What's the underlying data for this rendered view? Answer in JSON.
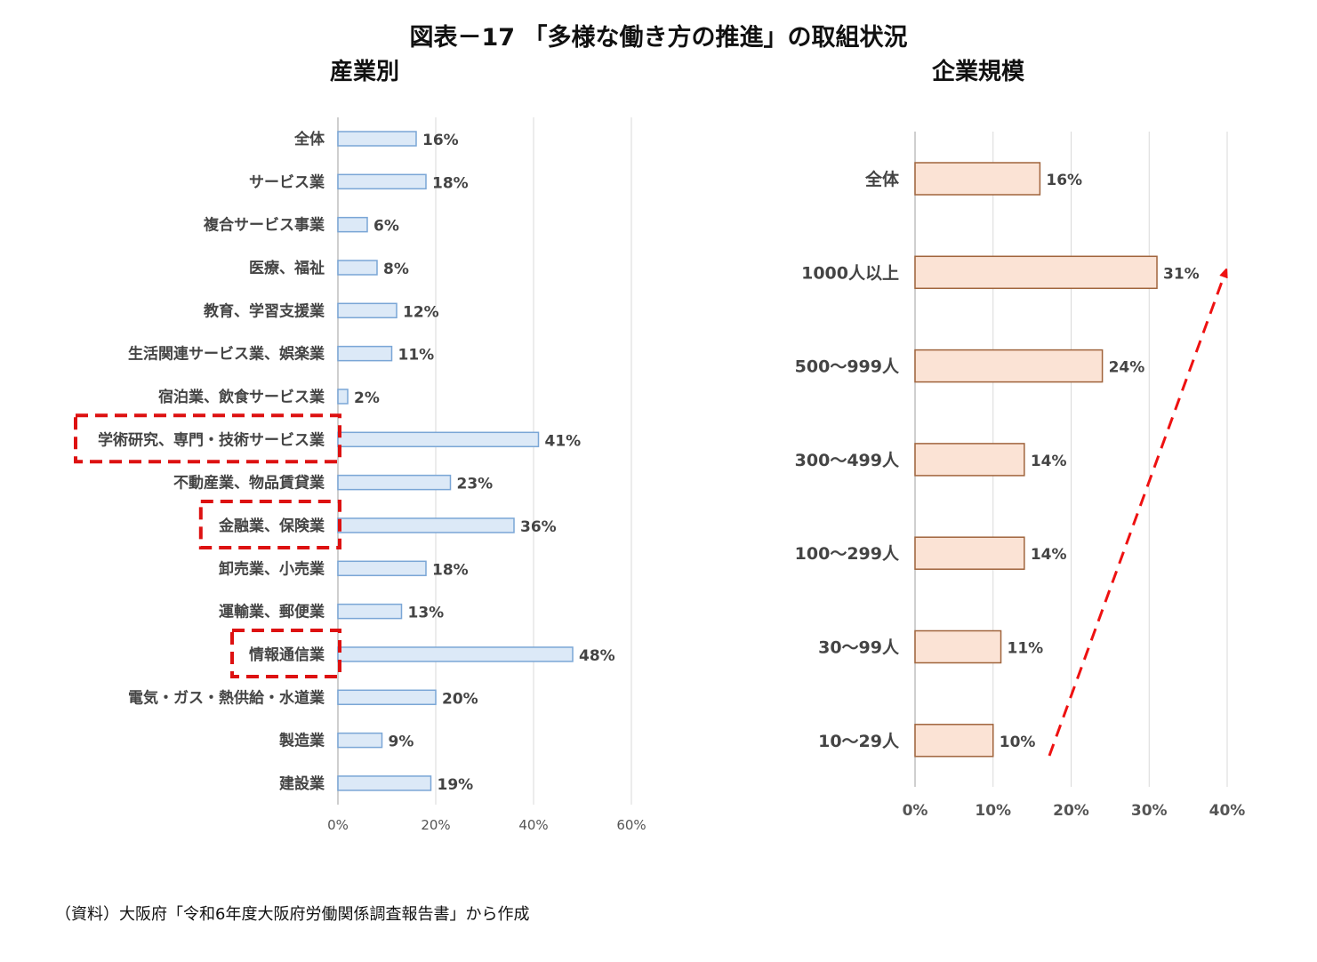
{
  "figure_title": "図表－17 「多様な働き方の推進」の取組状況",
  "source_note": "（資料）大阪府「令和6年度大阪府労働関係調査報告書」から作成",
  "colors": {
    "left_bar_fill": "#dce9f7",
    "left_bar_stroke": "#7aa6d6",
    "right_bar_fill": "#fbe3d5",
    "right_bar_stroke": "#a0643c",
    "highlight_box": "#dd1111",
    "arrow": "#ee1111",
    "gridline": "#d9d9d9"
  },
  "chart_data": [
    {
      "type": "bar",
      "orientation": "horizontal",
      "title": "産業別",
      "categories": [
        "全体",
        "サービス業",
        "複合サービス事業",
        "医療、福祉",
        "教育、学習支援業",
        "生活関連サービス業、娯楽業",
        "宿泊業、飲食サービス業",
        "学術研究、専門・技術サービス業",
        "不動産業、物品賃貸業",
        "金融業、保険業",
        "卸売業、小売業",
        "運輸業、郵便業",
        "情報通信業",
        "電気・ガス・熱供給・水道業",
        "製造業",
        "建設業"
      ],
      "values": [
        16,
        18,
        6,
        8,
        12,
        11,
        2,
        41,
        23,
        36,
        18,
        13,
        48,
        20,
        9,
        19
      ],
      "data_labels": [
        "16%",
        "18%",
        "6%",
        "8%",
        "12%",
        "11%",
        "2%",
        "41%",
        "23%",
        "36%",
        "18%",
        "13%",
        "48%",
        "20%",
        "9%",
        "19%"
      ],
      "xlim": [
        0,
        60
      ],
      "xticks": [
        "0%",
        "20%",
        "40%",
        "60%"
      ],
      "grid": true,
      "highlighted_categories": [
        "学術研究、専門・技術サービス業",
        "金融業、保険業",
        "情報通信業"
      ]
    },
    {
      "type": "bar",
      "orientation": "horizontal",
      "title": "企業規模",
      "categories": [
        "全体",
        "1000人以上",
        "500～999人",
        "300～499人",
        "100～299人",
        "30～99人",
        "10～29人"
      ],
      "values": [
        16,
        31,
        24,
        14,
        14,
        11,
        10
      ],
      "data_labels": [
        "16%",
        "31%",
        "24%",
        "14%",
        "14%",
        "11%",
        "10%"
      ],
      "xlim": [
        0,
        40
      ],
      "xticks": [
        "0%",
        "10%",
        "20%",
        "30%",
        "40%"
      ],
      "grid": true,
      "trend_arrow": "dashed arrow rising from 10～29人 toward 1000人以上"
    }
  ]
}
